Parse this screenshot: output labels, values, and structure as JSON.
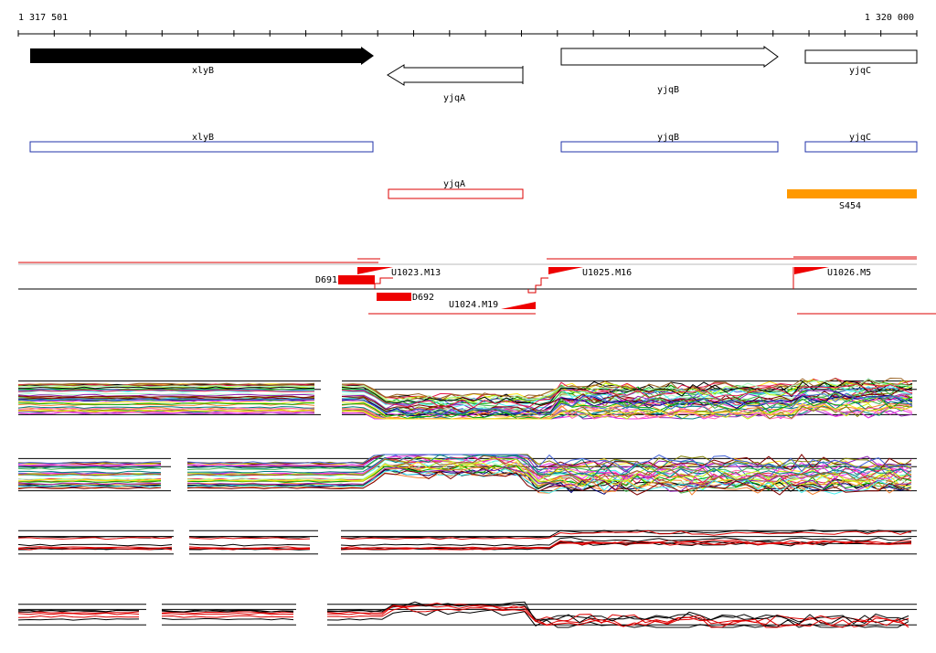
{
  "ruler": {
    "start": "1 317 501",
    "end": "1 320 000"
  },
  "genes": [
    "xlyB",
    "yjqA",
    "yjqB",
    "yjqC"
  ],
  "annotations": [
    "xlyB",
    "yjqB",
    "yjqC"
  ],
  "antisense": [
    "yjqA"
  ],
  "sigma": [
    "S454"
  ],
  "regulation": {
    "d691": "D691",
    "u1023": "U1023.M13",
    "d692": "D692",
    "u1024": "U1024.M19",
    "u1025": "U1025.M16",
    "u1026": "U1026.M5"
  }
}
